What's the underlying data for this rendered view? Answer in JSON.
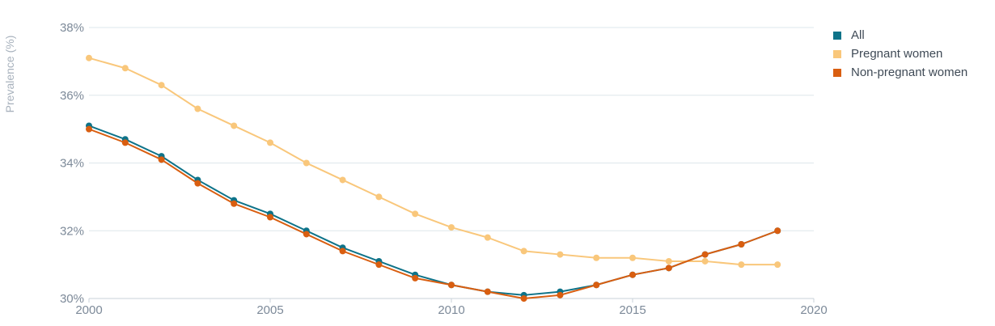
{
  "colors": {
    "grid": "#dde7ec",
    "axis": "#c8d2da",
    "tick_text": "#7d8a99",
    "all": "#0e7389",
    "pregnant": "#f9c77b",
    "non_pregnant": "#d95e10"
  },
  "chart_data": {
    "type": "line",
    "title": "",
    "xlabel": "",
    "ylabel": "Prevalence (%)",
    "xlim": [
      2000,
      2020
    ],
    "ylim": [
      30,
      38
    ],
    "xticks": [
      2000,
      2005,
      2010,
      2015,
      2020
    ],
    "yticks": [
      30,
      32,
      34,
      36,
      38
    ],
    "ytick_suffix": "%",
    "grid": true,
    "legend_position": "right",
    "x": [
      2000,
      2001,
      2002,
      2003,
      2004,
      2005,
      2006,
      2007,
      2008,
      2009,
      2010,
      2011,
      2012,
      2013,
      2014,
      2015,
      2016,
      2017,
      2018,
      2019
    ],
    "series": [
      {
        "name": "All",
        "color_key": "all",
        "values": [
          35.1,
          34.7,
          34.2,
          33.5,
          32.9,
          32.5,
          32.0,
          31.5,
          31.1,
          30.7,
          30.4,
          30.2,
          30.1,
          30.2,
          30.4,
          30.7,
          30.9,
          31.3,
          31.6,
          32.0
        ]
      },
      {
        "name": "Pregnant women",
        "color_key": "pregnant",
        "values": [
          37.1,
          36.8,
          36.3,
          35.6,
          35.1,
          34.6,
          34.0,
          33.5,
          33.0,
          32.5,
          32.1,
          31.8,
          31.4,
          31.3,
          31.2,
          31.2,
          31.1,
          31.1,
          31.0,
          31.0
        ]
      },
      {
        "name": "Non-pregnant women",
        "color_key": "non_pregnant",
        "values": [
          35.0,
          34.6,
          34.1,
          33.4,
          32.8,
          32.4,
          31.9,
          31.4,
          31.0,
          30.6,
          30.4,
          30.2,
          30.0,
          30.1,
          30.4,
          30.7,
          30.9,
          31.3,
          31.6,
          32.0
        ]
      }
    ]
  }
}
